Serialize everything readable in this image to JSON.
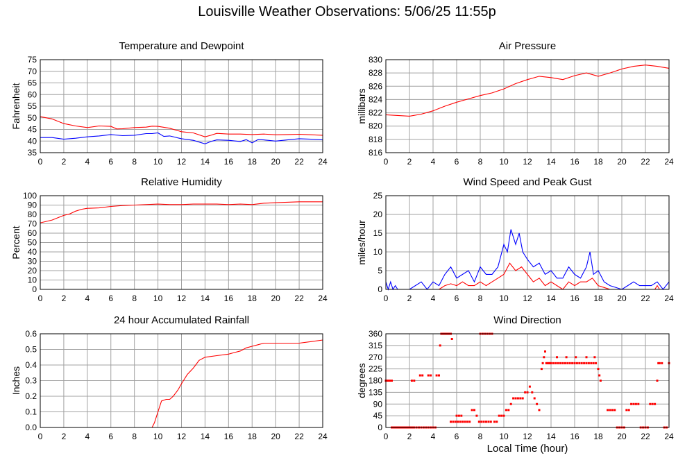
{
  "page": {
    "title": "Louisville Weather Observations: 5/06/25 11:55p"
  },
  "shared_xlabel": "Local Time (hour)",
  "colors": {
    "red": "#ff0000",
    "blue": "#0000ff",
    "grid": "#a0a0a0",
    "frame": "#000000"
  },
  "chart_data": [
    {
      "id": "temp",
      "type": "line",
      "title": "Temperature and Dewpoint",
      "xlabel": "",
      "ylabel": "Fahrenheit",
      "xlim": [
        0,
        24
      ],
      "ylim": [
        35,
        75
      ],
      "xticks": [
        0,
        2,
        4,
        6,
        8,
        10,
        12,
        14,
        16,
        18,
        20,
        22,
        24
      ],
      "yticks": [
        35,
        40,
        45,
        50,
        55,
        60,
        65,
        70,
        75
      ],
      "grid": true,
      "series": [
        {
          "color": "#ff0000",
          "x": [
            0,
            1,
            2,
            3,
            4,
            5,
            6,
            6.5,
            7,
            8,
            9,
            9.5,
            10,
            11,
            12,
            13,
            14,
            14.5,
            15,
            16,
            17,
            18,
            19,
            20,
            21,
            22,
            23,
            24
          ],
          "y": [
            50.5,
            49.5,
            47.5,
            46.5,
            45.8,
            46.5,
            46.3,
            45.2,
            45.3,
            45.8,
            46,
            46.4,
            46.3,
            45.5,
            44,
            43.5,
            41.8,
            42.5,
            43.3,
            43,
            43,
            42.8,
            43,
            42.7,
            42.8,
            42.9,
            42.7,
            42.5
          ]
        },
        {
          "color": "#0000ff",
          "x": [
            0,
            1,
            2,
            3,
            4,
            5,
            6,
            7,
            8,
            9,
            9.5,
            10,
            10.5,
            11,
            12,
            13,
            14,
            14.5,
            15,
            16,
            17,
            17.5,
            18,
            18.5,
            19,
            20,
            21,
            22,
            23,
            24
          ],
          "y": [
            41.5,
            41.5,
            40.8,
            41.2,
            41.8,
            42.2,
            42.8,
            42.3,
            42.5,
            43.2,
            43.2,
            43.5,
            42,
            42.2,
            41,
            40.3,
            38.8,
            39.8,
            40.5,
            40.3,
            39.8,
            40.6,
            39.2,
            40.6,
            40.5,
            40,
            40.5,
            41,
            40.8,
            40.5
          ]
        }
      ]
    },
    {
      "id": "pressure",
      "type": "line",
      "title": "Air Pressure",
      "xlabel": "",
      "ylabel": "millibars",
      "xlim": [
        0,
        24
      ],
      "ylim": [
        816,
        830
      ],
      "xticks": [
        0,
        2,
        4,
        6,
        8,
        10,
        12,
        14,
        16,
        18,
        20,
        22,
        24
      ],
      "yticks": [
        816,
        818,
        820,
        822,
        824,
        826,
        828,
        830
      ],
      "grid": true,
      "series": [
        {
          "color": "#ff0000",
          "x": [
            0,
            1,
            2,
            3,
            4,
            5,
            6,
            7,
            8,
            9,
            10,
            11,
            12,
            13,
            14,
            15,
            16,
            17,
            18,
            19,
            20,
            21,
            22,
            23,
            24
          ],
          "y": [
            821.7,
            821.6,
            821.5,
            821.8,
            822.3,
            823.0,
            823.6,
            824.1,
            824.6,
            825.0,
            825.6,
            826.4,
            827.0,
            827.5,
            827.3,
            827.0,
            827.6,
            828.0,
            827.5,
            828.0,
            828.6,
            829.0,
            829.2,
            829.0,
            828.7
          ]
        }
      ]
    },
    {
      "id": "humidity",
      "type": "line",
      "title": "Relative Humidity",
      "xlabel": "",
      "ylabel": "Percent",
      "xlim": [
        0,
        24
      ],
      "ylim": [
        0,
        100
      ],
      "xticks": [
        0,
        2,
        4,
        6,
        8,
        10,
        12,
        14,
        16,
        18,
        20,
        22,
        24
      ],
      "yticks": [
        0,
        10,
        20,
        30,
        40,
        50,
        60,
        70,
        80,
        90,
        100
      ],
      "grid": true,
      "series": [
        {
          "color": "#ff0000",
          "x": [
            0,
            0.5,
            1,
            1.5,
            2,
            2.5,
            3,
            3.5,
            4,
            5,
            6,
            7,
            8,
            9,
            10,
            11,
            12,
            13,
            14,
            15,
            16,
            17,
            18,
            19,
            20,
            21,
            22,
            23,
            24
          ],
          "y": [
            71,
            72.5,
            74,
            76.5,
            79,
            80.5,
            83.5,
            85.5,
            86.5,
            87,
            88.5,
            89.5,
            90,
            90.5,
            91,
            90.5,
            90.5,
            91,
            91,
            91,
            90.5,
            91,
            90.5,
            92,
            92.5,
            93,
            93.5,
            93.5,
            93.5
          ]
        }
      ]
    },
    {
      "id": "wind",
      "type": "line",
      "title": "Wind Speed and Peak Gust",
      "xlabel": "",
      "ylabel": "miles/hour",
      "xlim": [
        0,
        24
      ],
      "ylim": [
        0,
        25
      ],
      "xticks": [
        0,
        2,
        4,
        6,
        8,
        10,
        12,
        14,
        16,
        18,
        20,
        22,
        24
      ],
      "yticks": [
        0,
        5,
        10,
        15,
        20,
        25
      ],
      "grid": true,
      "series": [
        {
          "color": "#0000ff",
          "x": [
            0,
            0.2,
            0.4,
            0.6,
            0.8,
            1,
            2,
            2.5,
            3,
            3.5,
            4,
            4.5,
            5,
            5.5,
            6,
            6.5,
            7,
            7.5,
            8,
            8.5,
            9,
            9.5,
            10,
            10.3,
            10.6,
            11,
            11.3,
            11.6,
            12,
            12.5,
            13,
            13.5,
            14,
            14.5,
            15,
            15.5,
            16,
            16.5,
            17,
            17.3,
            17.6,
            18,
            18.5,
            19,
            20,
            20.5,
            21,
            21.5,
            22,
            22.5,
            23,
            23.5,
            24
          ],
          "y": [
            2,
            0,
            2,
            0,
            1,
            0,
            0,
            1,
            2,
            0,
            2,
            1,
            4,
            6,
            3,
            4,
            5,
            2,
            6,
            4,
            4,
            6,
            12,
            10,
            16,
            12,
            15,
            10,
            8,
            6,
            7,
            4,
            5,
            3,
            3,
            6,
            4,
            3,
            6,
            10,
            4,
            5,
            2,
            1,
            0,
            1,
            2,
            1,
            1,
            1,
            2,
            0,
            2
          ]
        },
        {
          "color": "#ff0000",
          "x": [
            0,
            4.5,
            5,
            5.5,
            6,
            6.5,
            7,
            7.5,
            8,
            8.5,
            9,
            9.5,
            10,
            10.5,
            11,
            11.5,
            12,
            12.5,
            13,
            13.5,
            14,
            14.5,
            15,
            15.5,
            16,
            16.5,
            17,
            17.5,
            18,
            18.5,
            19,
            22,
            22.8,
            23,
            23.2,
            24
          ],
          "y": [
            0,
            0,
            1,
            1.5,
            1,
            2,
            1,
            1,
            2,
            1,
            2,
            3,
            4,
            7,
            5,
            6,
            4,
            2,
            3,
            1,
            2,
            1,
            0,
            2,
            1,
            2,
            2,
            3,
            1,
            0.5,
            0,
            0,
            0,
            1,
            0,
            0
          ]
        }
      ]
    },
    {
      "id": "rain",
      "type": "line",
      "title": "24 hour Accumulated Rainfall",
      "xlabel": "",
      "ylabel": "Inches",
      "xlim": [
        0,
        24
      ],
      "ylim": [
        0,
        0.6
      ],
      "xticks": [
        0,
        2,
        4,
        6,
        8,
        10,
        12,
        14,
        16,
        18,
        20,
        22,
        24
      ],
      "yticks": [
        0.0,
        0.1,
        0.2,
        0.3,
        0.4,
        0.5,
        0.6
      ],
      "ytick_labels": [
        "0.0",
        "0.1",
        "0.2",
        "0.3",
        "0.4",
        "0.5",
        "0.6"
      ],
      "grid": true,
      "series": [
        {
          "color": "#ff0000",
          "x": [
            0,
            9.5,
            9.7,
            10,
            10.3,
            10.7,
            11,
            11.3,
            11.7,
            12,
            12.5,
            13,
            13.5,
            14,
            15,
            16,
            16.5,
            17,
            17.5,
            18,
            18.5,
            19,
            20,
            21,
            22,
            23,
            24
          ],
          "y": [
            0,
            0,
            0.03,
            0.1,
            0.17,
            0.18,
            0.18,
            0.2,
            0.24,
            0.28,
            0.34,
            0.38,
            0.43,
            0.45,
            0.46,
            0.47,
            0.48,
            0.49,
            0.51,
            0.52,
            0.53,
            0.54,
            0.54,
            0.54,
            0.54,
            0.55,
            0.56
          ]
        }
      ]
    },
    {
      "id": "direction",
      "type": "scatter",
      "title": "Wind Direction",
      "xlabel": "Local Time (hour)",
      "ylabel": "degrees",
      "xlim": [
        0,
        24
      ],
      "ylim": [
        0,
        360
      ],
      "xticks": [
        0,
        2,
        4,
        6,
        8,
        10,
        12,
        14,
        16,
        18,
        20,
        22,
        24
      ],
      "yticks": [
        0,
        45,
        90,
        135,
        180,
        225,
        270,
        315,
        360
      ],
      "grid": true,
      "series": [
        {
          "color": "#ff0000",
          "x": [
            0,
            0.1,
            0.2,
            0.3,
            0.4,
            0.5,
            0.5,
            0.6,
            0.7,
            0.8,
            0.9,
            1.0,
            1.1,
            1.2,
            1.3,
            1.4,
            1.5,
            1.6,
            1.7,
            1.8,
            1.9,
            2.0,
            2.1,
            2.2,
            2.3,
            2.4,
            2.6,
            2.8,
            3.0,
            3.2,
            3.4,
            3.6,
            3.8,
            4.0,
            4.2,
            2.2,
            2.4,
            2.9,
            3.1,
            3.6,
            3.8,
            4.3,
            4.5,
            4.6,
            4.7,
            4.8,
            4.9,
            5.0,
            5.1,
            5.2,
            5.3,
            5.4,
            5.5,
            5.6,
            5.5,
            5.7,
            5.9,
            6.1,
            6.3,
            6.5,
            6.7,
            6.9,
            7.1,
            6.0,
            6.2,
            6.4,
            7.3,
            7.5,
            7.7,
            7.9,
            8.1,
            8.3,
            8.5,
            8.7,
            8.9,
            8.0,
            8.2,
            8.4,
            8.6,
            8.8,
            9.0,
            9.2,
            9.4,
            9.6,
            9.8,
            10.0,
            10.2,
            10.4,
            10.6,
            10.8,
            11.0,
            11.2,
            11.4,
            11.6,
            11.8,
            12.0,
            12.2,
            12.4,
            12.6,
            12.8,
            13.0,
            13.2,
            13.3,
            13.4,
            13.5,
            13.6,
            13.7,
            13.8,
            13.9,
            14.0,
            14.2,
            14.4,
            14.6,
            14.8,
            15.0,
            15.2,
            15.4,
            15.6,
            15.8,
            16.0,
            16.2,
            16.4,
            16.6,
            16.8,
            17.0,
            17.2,
            17.4,
            17.6,
            17.8,
            18.0,
            18.1,
            18.2,
            14.5,
            15.3,
            16.1,
            17.0,
            17.7,
            18.8,
            19.0,
            19.2,
            19.4,
            19.6,
            19.8,
            20.0,
            20.2,
            20.4,
            20.6,
            20.8,
            21.0,
            21.2,
            21.4,
            21.6,
            21.8,
            22.0,
            22.2,
            22.4,
            22.6,
            22.8,
            23.0,
            23.1,
            23.2,
            23.4,
            23.6,
            23.8,
            24.0
          ],
          "y": [
            180,
            180,
            180,
            180,
            180,
            180,
            0,
            0,
            0,
            0,
            0,
            0,
            0,
            0,
            0,
            0,
            0,
            0,
            0,
            0,
            0,
            0,
            0,
            0,
            0,
            0,
            0,
            0,
            0,
            0,
            0,
            0,
            0,
            0,
            0,
            180,
            180,
            200,
            200,
            200,
            200,
            200,
            200,
            315,
            360,
            360,
            360,
            360,
            360,
            360,
            360,
            360,
            360,
            340,
            22,
            22,
            22,
            22,
            22,
            22,
            22,
            22,
            22,
            45,
            45,
            45,
            67,
            67,
            45,
            22,
            22,
            22,
            22,
            22,
            22,
            360,
            360,
            360,
            360,
            360,
            360,
            22,
            22,
            45,
            45,
            45,
            67,
            67,
            90,
            112,
            112,
            112,
            112,
            112,
            135,
            135,
            157,
            135,
            112,
            90,
            67,
            225,
            247,
            270,
            292,
            247,
            247,
            247,
            247,
            247,
            247,
            247,
            247,
            247,
            247,
            247,
            247,
            247,
            247,
            247,
            247,
            247,
            247,
            247,
            247,
            247,
            247,
            247,
            247,
            225,
            200,
            180,
            270,
            270,
            270,
            270,
            270,
            67,
            67,
            67,
            67,
            0,
            0,
            0,
            0,
            67,
            67,
            90,
            90,
            90,
            90,
            0,
            0,
            0,
            0,
            90,
            90,
            90,
            180,
            247,
            247,
            247,
            0,
            0,
            247
          ]
        }
      ]
    }
  ]
}
